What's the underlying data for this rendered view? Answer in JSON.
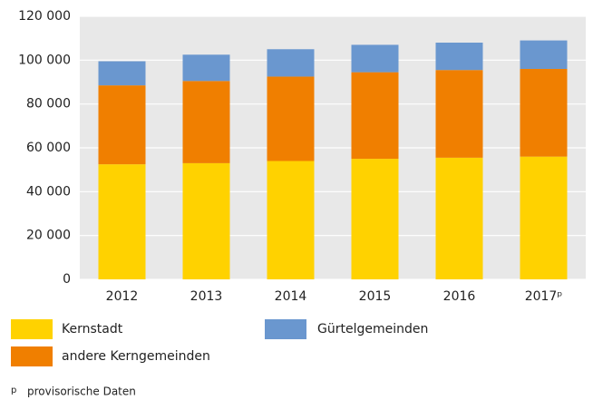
{
  "chart_data": {
    "type": "stacked-bar",
    "categories": [
      "2012",
      "2013",
      "2014",
      "2015",
      "2016",
      "2017ᵖ"
    ],
    "series": [
      {
        "name": "Kernstadt",
        "color": "#ffd200",
        "values": [
          52500,
          53000,
          54000,
          55000,
          55500,
          56000
        ]
      },
      {
        "name": "andere Kerngemeinden",
        "color": "#f07f00",
        "values": [
          36000,
          37500,
          38500,
          39500,
          40000,
          40000
        ]
      },
      {
        "name": "Gürtelgemeinden",
        "color": "#6a97cf",
        "values": [
          11000,
          12000,
          12500,
          12500,
          12500,
          13000
        ]
      }
    ],
    "ylim": [
      0,
      120000
    ],
    "yticks": [
      0,
      {
        "value": 20000,
        "label": "20 000"
      },
      {
        "value": 40000,
        "label": "40 000"
      },
      {
        "value": 60000,
        "label": "60 000"
      },
      {
        "value": 80000,
        "label": "80 000"
      },
      {
        "value": 100000,
        "label": "100 000"
      },
      {
        "value": 120000,
        "label": "120 000"
      }
    ],
    "grid": true,
    "footnote": {
      "marker": "p",
      "text": "provisorische Daten"
    }
  }
}
